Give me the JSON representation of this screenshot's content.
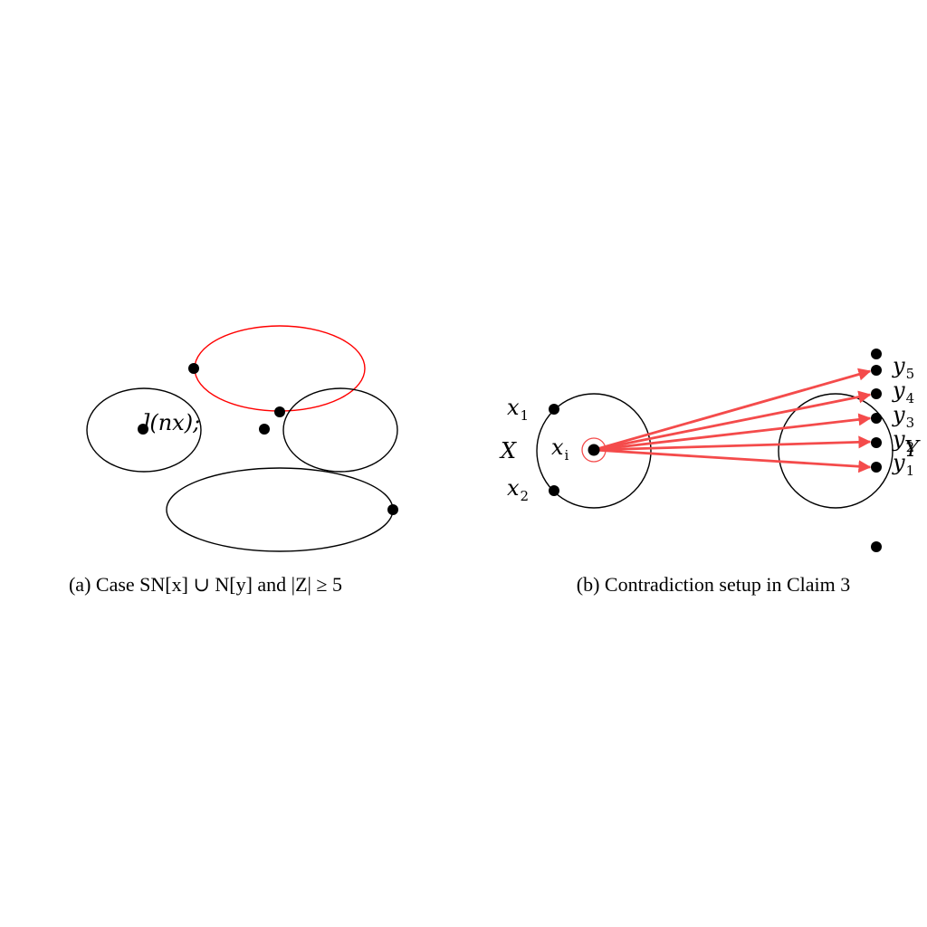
{
  "colors": {
    "ink": "#000000",
    "red_ellipse": "#ff0000",
    "arrow": "#f44b4b"
  },
  "panel_a": {
    "stray_label": "](nx);",
    "caption": "(a) Case SN[x] ∪ N[y] and |Z| ≥ 5"
  },
  "panel_b": {
    "label_X": "X",
    "label_Y": "Y",
    "x1": {
      "base": "x",
      "sub": "1"
    },
    "x2": {
      "base": "x",
      "sub": "2"
    },
    "xi": {
      "base": "x",
      "sub": "i"
    },
    "y_labels": [
      {
        "base": "y",
        "sub": "5"
      },
      {
        "base": "y",
        "sub": "4"
      },
      {
        "base": "y",
        "sub": "3"
      },
      {
        "base": "y",
        "sub": "2"
      },
      {
        "base": "y",
        "sub": "1"
      }
    ],
    "caption": "(b) Contradiction setup in Claim 3"
  }
}
